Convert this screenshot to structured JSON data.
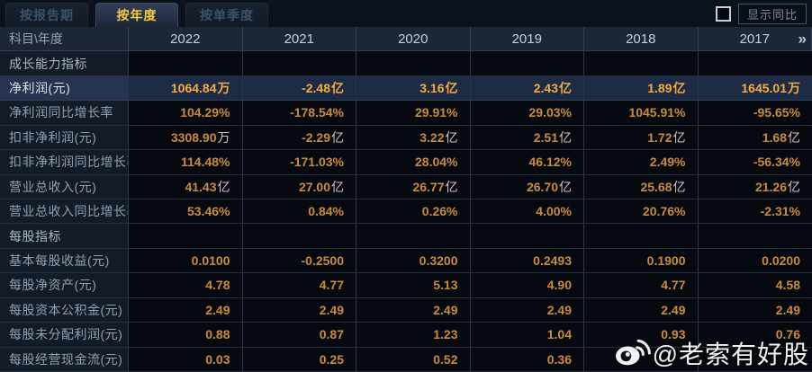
{
  "tabs": [
    {
      "label": "按报告期",
      "active": false
    },
    {
      "label": "按年度",
      "active": true
    },
    {
      "label": "按单季度",
      "active": false
    }
  ],
  "controls": {
    "compare_checkbox_checked": false,
    "compare_button_label": "显示同比"
  },
  "table": {
    "corner_header": "科目\\年度",
    "years": [
      "2022",
      "2021",
      "2020",
      "2019",
      "2018",
      "2017"
    ],
    "more_indicator": "»",
    "rows": [
      {
        "type": "section",
        "label": "成长能力指标"
      },
      {
        "type": "data",
        "highlight": true,
        "label": "净利润(元)",
        "values": [
          "1064.84万",
          "-2.48亿",
          "3.16亿",
          "2.43亿",
          "1.89亿",
          "1645.01万"
        ]
      },
      {
        "type": "data",
        "highlight": false,
        "label": "净利润同比增长率",
        "values": [
          "104.29%",
          "-178.54%",
          "29.91%",
          "29.03%",
          "1045.91%",
          "-95.65%"
        ]
      },
      {
        "type": "data",
        "highlight": false,
        "label": "扣非净利润(元)",
        "values": [
          "3308.90万",
          "-2.29亿",
          "3.22亿",
          "2.51亿",
          "1.72亿",
          "1.68亿"
        ]
      },
      {
        "type": "data",
        "highlight": false,
        "label": "扣非净利润同比增长率",
        "values": [
          "114.48%",
          "-171.03%",
          "28.04%",
          "46.12%",
          "2.49%",
          "-56.34%"
        ]
      },
      {
        "type": "data",
        "highlight": false,
        "label": "营业总收入(元)",
        "values": [
          "41.43亿",
          "27.00亿",
          "26.77亿",
          "26.70亿",
          "25.68亿",
          "21.26亿"
        ]
      },
      {
        "type": "data",
        "highlight": false,
        "label": "营业总收入同比增长率",
        "values": [
          "53.46%",
          "0.84%",
          "0.26%",
          "4.00%",
          "20.76%",
          "-2.31%"
        ]
      },
      {
        "type": "section",
        "label": "每股指标"
      },
      {
        "type": "data",
        "highlight": false,
        "label": "基本每股收益(元)",
        "values": [
          "0.0100",
          "-0.2500",
          "0.3200",
          "0.2493",
          "0.1900",
          "0.0200"
        ]
      },
      {
        "type": "data",
        "highlight": false,
        "label": "每股净资产(元)",
        "values": [
          "4.78",
          "4.77",
          "5.13",
          "4.90",
          "4.77",
          "4.58"
        ]
      },
      {
        "type": "data",
        "highlight": false,
        "label": "每股资本公积金(元)",
        "values": [
          "2.49",
          "2.49",
          "2.49",
          "2.49",
          "2.49",
          "2.49"
        ]
      },
      {
        "type": "data",
        "highlight": false,
        "label": "每股未分配利润(元)",
        "values": [
          "0.88",
          "0.87",
          "1.23",
          "1.04",
          "0.93",
          "0.76"
        ]
      },
      {
        "type": "data",
        "highlight": false,
        "label": "每股经营现金流(元)",
        "values": [
          "0.03",
          "0.25",
          "0.52",
          "0.36",
          "",
          ""
        ]
      }
    ]
  },
  "watermark": {
    "icon": "weibo-icon",
    "text": "@老索有好股"
  },
  "colors": {
    "accent_gold": "#f7c93e",
    "value_orange": "#c98b3e",
    "highlight_row_bg": "#1d2b45",
    "label_column_bg": "#131b27",
    "header_row_bg": "#1c2634"
  }
}
